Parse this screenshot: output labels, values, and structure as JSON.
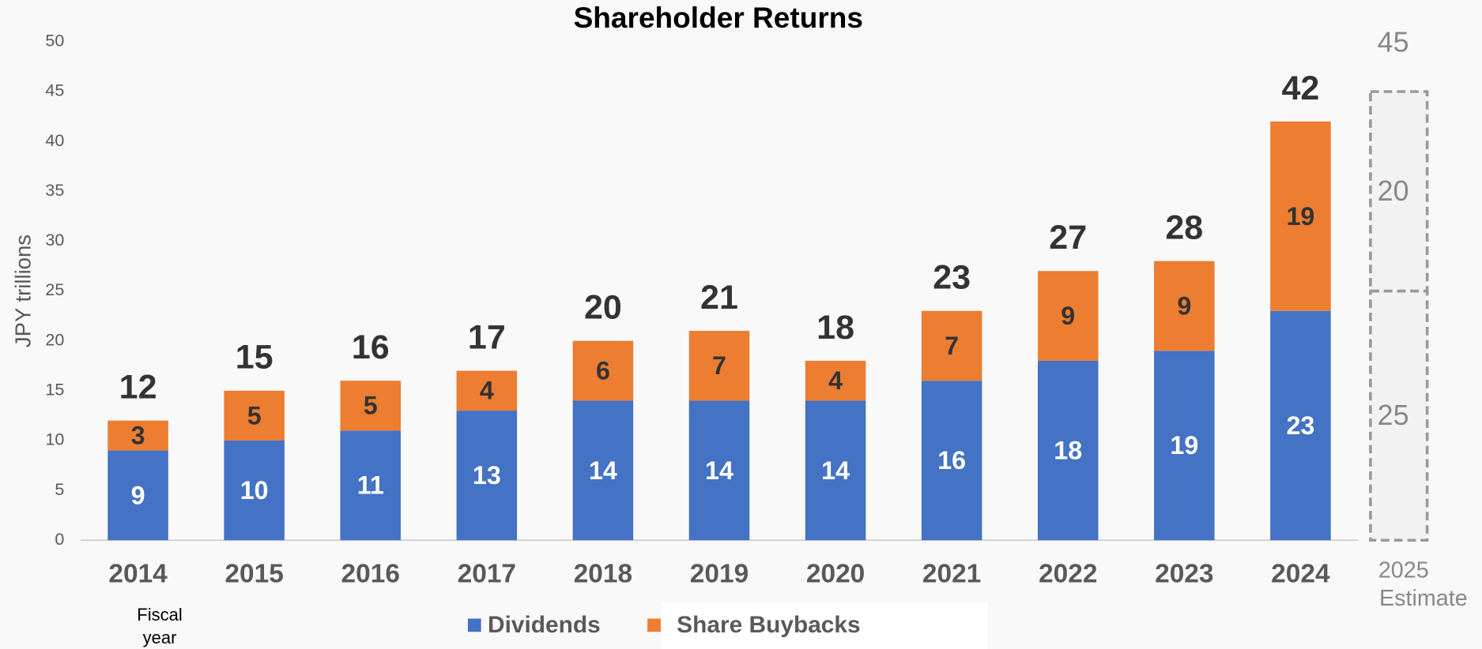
{
  "chart_data": {
    "type": "stacked_bar",
    "title": "Shareholder Returns",
    "y_label": "JPY trillions",
    "x_label": "Fiscal year",
    "categories": [
      "2014",
      "2015",
      "2016",
      "2017",
      "2018",
      "2019",
      "2020",
      "2021",
      "2022",
      "2023",
      "2024"
    ],
    "series": [
      {
        "name": "Dividends",
        "color": "#4472c4",
        "values": [
          9,
          10,
          11,
          13,
          14,
          14,
          14,
          16,
          18,
          19,
          23
        ]
      },
      {
        "name": "Share Buybacks",
        "color": "#ed7d31",
        "values": [
          3,
          5,
          5,
          4,
          6,
          7,
          4,
          7,
          9,
          9,
          19
        ]
      }
    ],
    "totals": [
      12,
      15,
      16,
      17,
      20,
      21,
      18,
      23,
      27,
      28,
      42
    ],
    "estimate": {
      "category": "2025",
      "note": "Estimate",
      "values": [
        25,
        20
      ],
      "total": 45
    },
    "ylim": [
      0,
      50
    ],
    "yticks": [
      0,
      5,
      10,
      15,
      20,
      25,
      30,
      35,
      40,
      45,
      50
    ],
    "legend": "bottom"
  }
}
